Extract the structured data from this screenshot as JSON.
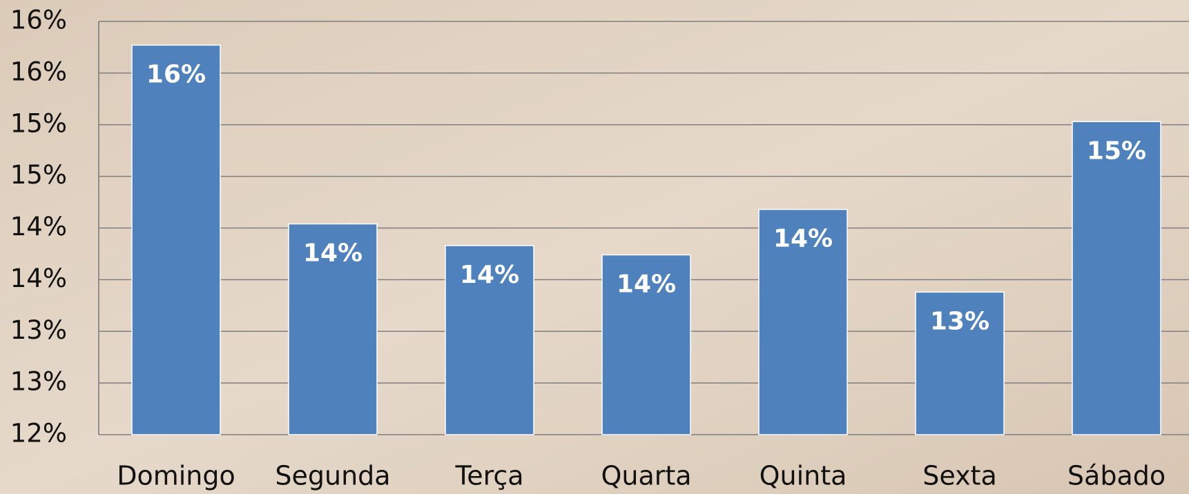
{
  "chart_data": {
    "type": "bar",
    "categories": [
      "Domingo",
      "Segunda",
      "Terça",
      "Quarta",
      "Quinta",
      "Sexta",
      "Sábado"
    ],
    "values": [
      15.77,
      14.04,
      13.83,
      13.74,
      14.18,
      13.38,
      15.03
    ],
    "value_labels": [
      "16%",
      "14%",
      "14%",
      "14%",
      "14%",
      "13%",
      "15%"
    ],
    "color": "#4f81bd",
    "ylim": [
      12,
      16
    ],
    "yticks": [
      {
        "value": 12,
        "label": "12%"
      },
      {
        "value": 12.5,
        "label": "13%"
      },
      {
        "value": 13,
        "label": "13%"
      },
      {
        "value": 13.5,
        "label": "14%"
      },
      {
        "value": 14,
        "label": "14%"
      },
      {
        "value": 14.5,
        "label": "15%"
      },
      {
        "value": 15,
        "label": "15%"
      },
      {
        "value": 15.5,
        "label": "16%"
      },
      {
        "value": 16,
        "label": "16%"
      }
    ],
    "grid": true
  }
}
